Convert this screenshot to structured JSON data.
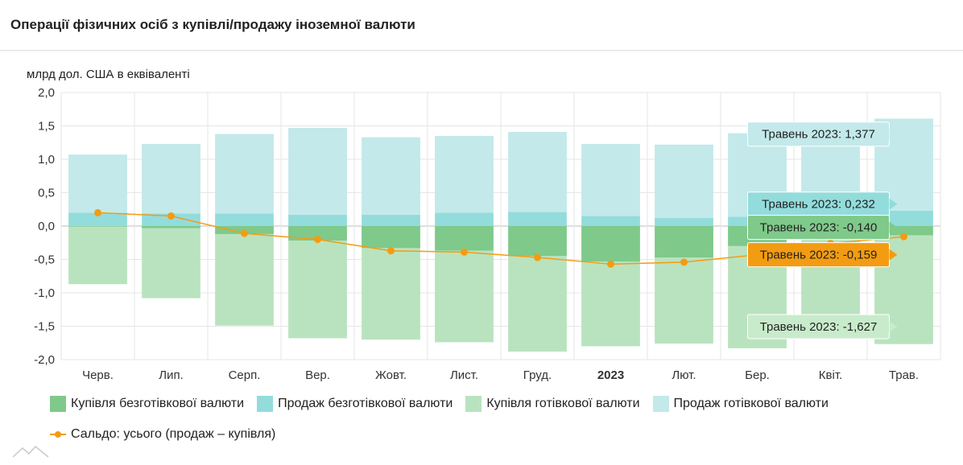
{
  "header": {
    "title": "Операції фізичних осіб з купівлі/продажу іноземної валюти"
  },
  "chart_data": {
    "type": "bar",
    "ylabel": "млрд дол. США в еквіваленті",
    "ylim": [
      -2.0,
      2.0
    ],
    "yticks": [
      "2,0",
      "1,5",
      "1,0",
      "0,5",
      "0,0",
      "-0,5",
      "-1,0",
      "-1,5",
      "-2,0"
    ],
    "ytick_values": [
      2.0,
      1.5,
      1.0,
      0.5,
      0.0,
      -0.5,
      -1.0,
      -1.5,
      -2.0
    ],
    "categories": [
      "Черв.",
      "Лип.",
      "Серп.",
      "Вер.",
      "Жовт.",
      "Лист.",
      "Груд.",
      "2023",
      "Лют.",
      "Бер.",
      "Квіт.",
      "Трав."
    ],
    "bold_category": "2023",
    "grid": true,
    "legend_position": "bottom",
    "series": [
      {
        "key": "noncash_buy",
        "name": "Купівля безготівкової валюти",
        "color": "#7fc98a",
        "values": [
          -0.01,
          -0.03,
          -0.12,
          -0.22,
          -0.33,
          -0.37,
          -0.45,
          -0.53,
          -0.47,
          -0.3,
          -0.2,
          -0.14
        ]
      },
      {
        "key": "noncash_sell",
        "name": "Продаж безготівкової валюти",
        "color": "#93dcdc",
        "values": [
          0.2,
          0.19,
          0.19,
          0.17,
          0.17,
          0.2,
          0.21,
          0.15,
          0.12,
          0.14,
          0.2,
          0.232
        ]
      },
      {
        "key": "cash_buy",
        "name": "Купівля готівкової валюти",
        "color": "#b9e3bf",
        "values": [
          -0.86,
          -1.05,
          -1.37,
          -1.46,
          -1.37,
          -1.37,
          -1.43,
          -1.27,
          -1.29,
          -1.53,
          -1.38,
          -1.627
        ]
      },
      {
        "key": "cash_sell",
        "name": "Продаж готівкової валюти",
        "color": "#c3e9ea",
        "values": [
          0.87,
          1.04,
          1.19,
          1.3,
          1.16,
          1.15,
          1.2,
          1.08,
          1.1,
          1.25,
          1.15,
          1.377
        ]
      }
    ],
    "line_series": {
      "name": "Сальдо: усього (продаж – купівля)",
      "color": "#f39c12",
      "values": [
        0.2,
        0.15,
        -0.11,
        -0.2,
        -0.37,
        -0.39,
        -0.47,
        -0.57,
        -0.54,
        -0.43,
        -0.26,
        -0.159
      ]
    },
    "tooltips": [
      {
        "text": "Травень 2023: 1,377",
        "value": 1.377,
        "color": "#c3e9ea",
        "text_color": "#222222"
      },
      {
        "text": "Травень 2023: 0,232",
        "value": 0.232,
        "color": "#93dcdc",
        "text_color": "#222222"
      },
      {
        "text": "Травень 2023: -0,140",
        "value": -0.14,
        "color": "#7fc98a",
        "text_color": "#222222"
      },
      {
        "text": "Травень 2023: -0,159",
        "value": -0.159,
        "color": "#f39c12",
        "text_color": "#222222"
      },
      {
        "text": "Травень 2023: -1,627",
        "value": -1.627,
        "color": "#c8ebcb",
        "text_color": "#222222"
      }
    ]
  }
}
